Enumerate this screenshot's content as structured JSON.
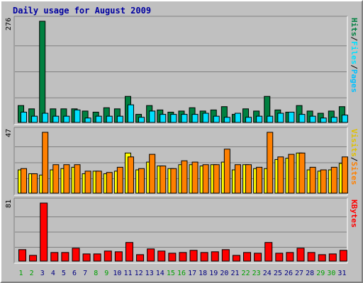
{
  "title": "Daily usage for August 2009",
  "colors": {
    "hits": "#008040",
    "files": "#00e0ff",
    "visits": "#ffff00",
    "sites": "#ff8000",
    "kbytes": "#ff0000",
    "panel_bg": "#c0c0c0",
    "weekend_day": "#00a000",
    "weekday_day": "#000080"
  },
  "chart_data": [
    {
      "type": "bar",
      "categories": [
        "1",
        "2",
        "3",
        "4",
        "5",
        "6",
        "7",
        "8",
        "9",
        "10",
        "11",
        "12",
        "13",
        "14",
        "15",
        "16",
        "17",
        "18",
        "19",
        "20",
        "21",
        "22",
        "23",
        "24",
        "25",
        "26",
        "27",
        "28",
        "29",
        "30",
        "31"
      ],
      "weekend_days": [
        "1",
        "2",
        "8",
        "9",
        "15",
        "16",
        "22",
        "23",
        "29",
        "30"
      ],
      "ymax_label": "276",
      "ylim": [
        0,
        276
      ],
      "series": [
        {
          "name": "Hits",
          "values": [
            46,
            37,
            276,
            37,
            37,
            37,
            31,
            28,
            40,
            37,
            71,
            22,
            46,
            34,
            28,
            31,
            40,
            31,
            34,
            43,
            22,
            37,
            31,
            71,
            34,
            28,
            46,
            31,
            25,
            31,
            43
          ]
        },
        {
          "name": "Files",
          "values": [
            28,
            17,
            25,
            17,
            17,
            34,
            12,
            17,
            17,
            17,
            48,
            14,
            31,
            22,
            22,
            22,
            22,
            25,
            17,
            14,
            25,
            14,
            17,
            17,
            25,
            28,
            22,
            17,
            12,
            14,
            20
          ]
        }
      ],
      "right_labels": [
        "Hits",
        "Files",
        "Pages"
      ]
    },
    {
      "type": "bar",
      "categories": [
        "1",
        "2",
        "3",
        "4",
        "5",
        "6",
        "7",
        "8",
        "9",
        "10",
        "11",
        "12",
        "13",
        "14",
        "15",
        "16",
        "17",
        "18",
        "19",
        "20",
        "21",
        "22",
        "23",
        "24",
        "25",
        "26",
        "27",
        "28",
        "29",
        "30",
        "31"
      ],
      "ymax_label": "47",
      "ylim": [
        0,
        47
      ],
      "series": [
        {
          "name": "Visits",
          "values": [
            18,
            15,
            14,
            18,
            19,
            20,
            15,
            17,
            15,
            17,
            31,
            18,
            24,
            21,
            19,
            22,
            22,
            21,
            22,
            24,
            18,
            22,
            19,
            19,
            26,
            27,
            31,
            18,
            17,
            18,
            23
          ]
        },
        {
          "name": "Sites",
          "values": [
            19,
            15,
            47,
            22,
            22,
            22,
            17,
            17,
            16,
            20,
            28,
            19,
            30,
            21,
            19,
            25,
            24,
            22,
            22,
            34,
            22,
            22,
            20,
            47,
            28,
            30,
            31,
            20,
            18,
            20,
            28
          ]
        }
      ],
      "right_labels": [
        "Visits",
        "Sites"
      ]
    },
    {
      "type": "bar",
      "categories": [
        "1",
        "2",
        "3",
        "4",
        "5",
        "6",
        "7",
        "8",
        "9",
        "10",
        "11",
        "12",
        "13",
        "14",
        "15",
        "16",
        "17",
        "18",
        "19",
        "20",
        "21",
        "22",
        "23",
        "24",
        "25",
        "26",
        "27",
        "28",
        "29",
        "30",
        "31"
      ],
      "ymax_label": "81",
      "ylim": [
        0,
        81
      ],
      "series": [
        {
          "name": "KBytes",
          "values": [
            16,
            8,
            81,
            12,
            12,
            18,
            10,
            10,
            14,
            13,
            26,
            9,
            17,
            14,
            11,
            12,
            15,
            12,
            13,
            16,
            8,
            12,
            11,
            26,
            11,
            12,
            18,
            12,
            9,
            10,
            15
          ]
        }
      ],
      "right_labels": [
        "KBytes"
      ]
    }
  ]
}
